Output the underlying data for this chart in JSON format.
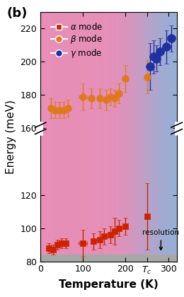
{
  "title_label": "(b)",
  "xlabel": "Temperature (K)",
  "ylabel": "Energy (meV)",
  "xlim": [
    0,
    320
  ],
  "ylim": [
    80,
    230
  ],
  "Tc": 250,
  "alpha_x": [
    20,
    30,
    40,
    50,
    60,
    100,
    125,
    140,
    150,
    165,
    175,
    185,
    200,
    250
  ],
  "alpha_y": [
    88,
    87,
    90,
    91,
    91,
    91,
    92,
    93,
    95,
    96,
    98,
    100,
    101,
    107
  ],
  "alpha_xerr": [
    0,
    0,
    0,
    0,
    0,
    10,
    0,
    0,
    0,
    0,
    0,
    0,
    0,
    0
  ],
  "alpha_yerr": [
    3,
    3,
    3,
    3,
    3,
    8,
    5,
    5,
    5,
    5,
    8,
    5,
    5,
    20
  ],
  "beta_x": [
    25,
    35,
    45,
    55,
    65,
    100,
    120,
    140,
    155,
    165,
    175,
    185,
    200,
    250
  ],
  "beta_y": [
    172,
    171,
    171,
    171,
    172,
    179,
    178,
    178,
    177,
    179,
    178,
    181,
    190,
    191
  ],
  "beta_xerr": [
    0,
    0,
    0,
    0,
    0,
    10,
    0,
    0,
    0,
    0,
    0,
    0,
    0,
    0
  ],
  "beta_yerr": [
    6,
    5,
    5,
    5,
    5,
    8,
    6,
    6,
    6,
    5,
    5,
    6,
    8,
    10
  ],
  "gamma_x": [
    258,
    265,
    272,
    280,
    295,
    308
  ],
  "gamma_y": [
    197,
    203,
    202,
    206,
    209,
    214
  ],
  "gamma_xerr": [
    0,
    0,
    0,
    0,
    0,
    0
  ],
  "gamma_yerr": [
    14,
    10,
    8,
    8,
    10,
    8
  ],
  "alpha_color": "#cc2200",
  "beta_color": "#e07820",
  "gamma_color": "#2030a0",
  "resolution_x": 283,
  "resolution_label": "resolution",
  "yticks": [
    80,
    100,
    120,
    160,
    180,
    200,
    220
  ],
  "ytick_labels": [
    "80",
    "100",
    "120",
    "160",
    "180",
    "200",
    "220"
  ],
  "xticks": [
    0,
    100,
    200,
    250,
    300
  ],
  "xtick_labels": [
    "0",
    "100",
    "200",
    "$T_c$",
    "300"
  ],
  "break_y": 160,
  "gray_top": 84
}
